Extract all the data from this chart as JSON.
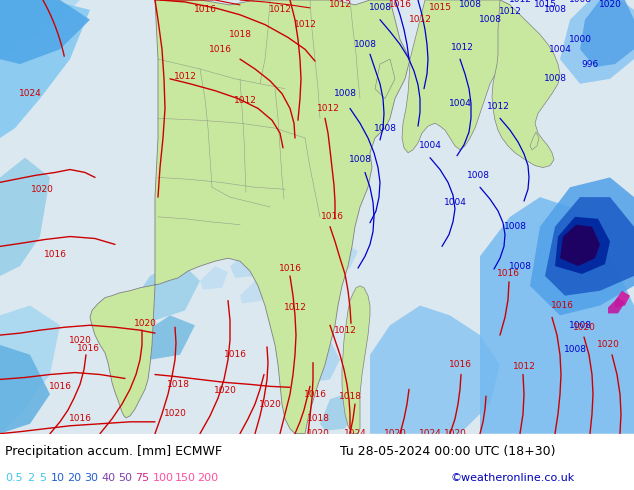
{
  "title_left": "Precipitation accum. [mm] ECMWF",
  "title_right": "Tu 28-05-2024 00:00 UTC (18+30)",
  "credit": "©weatheronline.co.uk",
  "colorbar_values": [
    0.5,
    2,
    5,
    10,
    20,
    30,
    40,
    50,
    75,
    100,
    150,
    200
  ],
  "colorbar_label_colors": [
    "#40c8e8",
    "#40c8e8",
    "#40c8e8",
    "#2060d0",
    "#2060d0",
    "#2060d0",
    "#8040b0",
    "#8040b0",
    "#d02890",
    "#ff50a0",
    "#ff50a0",
    "#ff50a0"
  ],
  "credit_color": "#0000bb",
  "font_size_title": 9,
  "font_size_legend": 8,
  "land_color": "#c8e8a0",
  "ocean_color": "#e0eef8",
  "precip_light": "#a8e0f8",
  "precip_mid": "#60b0e8",
  "precip_strong": "#2060c8",
  "precip_heavy": "#0020a0",
  "precip_intense": "#400080",
  "precip_pink": "#e020a0",
  "isobar_red": "#cc0000",
  "isobar_blue": "#0000cc",
  "country_border": "#808080"
}
